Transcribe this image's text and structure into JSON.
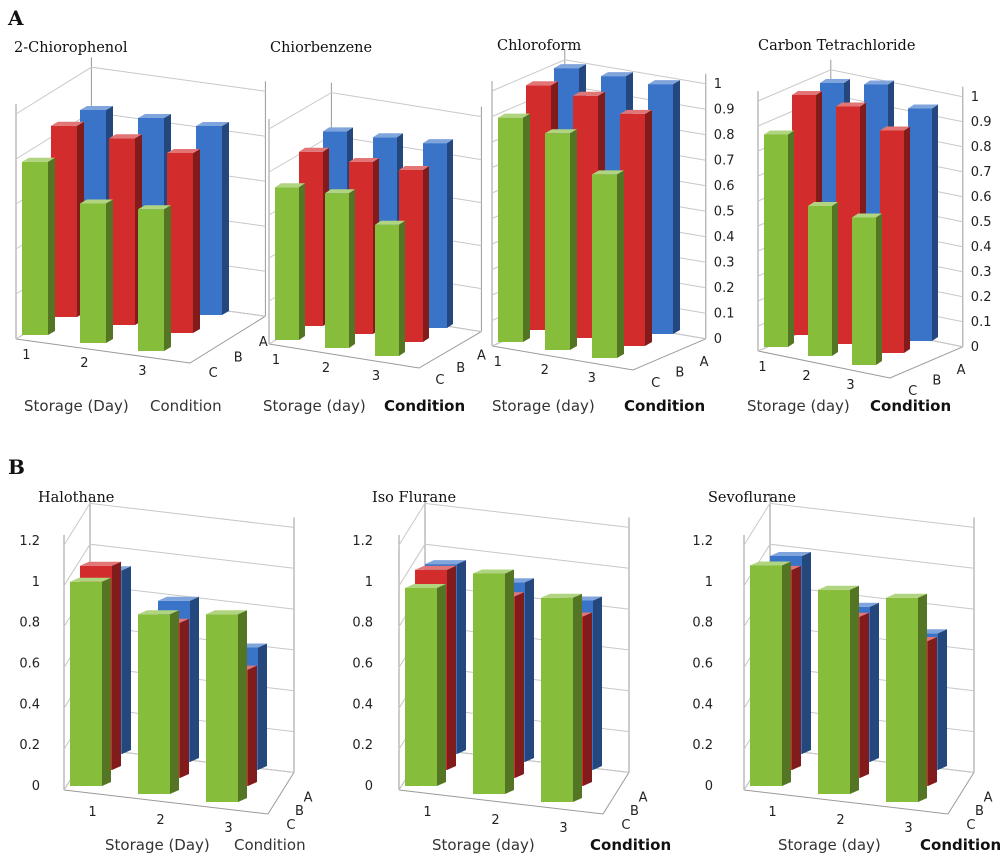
{
  "colors": {
    "A": "#3a74c9",
    "B": "#d22c2c",
    "C": "#86bd3a"
  },
  "panels": {
    "a": "A",
    "b": "B"
  },
  "chart_data": [
    {
      "panel": "A",
      "type": "bar3d",
      "title": "2-Chiorophenol",
      "xlabel": "Storage (Day)",
      "ylabel": "Condition",
      "storage_ticks": [
        "1",
        "2",
        "3"
      ],
      "condition_ticks": [
        "C",
        "B",
        "A"
      ],
      "y_ticks": [],
      "ylim": [
        0,
        1
      ],
      "series": [
        {
          "name": "A",
          "values": [
            0.84,
            0.84,
            0.84
          ]
        },
        {
          "name": "B",
          "values": [
            0.85,
            0.83,
            0.8
          ]
        },
        {
          "name": "C",
          "values": [
            0.77,
            0.62,
            0.63
          ]
        }
      ]
    },
    {
      "panel": "A",
      "type": "bar3d",
      "title": "Chiorbenzene",
      "xlabel": "Storage (day)",
      "ylabel": "Condition",
      "storage_ticks": [
        "1",
        "2",
        "3"
      ],
      "condition_ticks": [
        "C",
        "B",
        "A"
      ],
      "y_ticks": [],
      "ylim": [
        0,
        1
      ],
      "series": [
        {
          "name": "A",
          "values": [
            0.84,
            0.85,
            0.86
          ]
        },
        {
          "name": "B",
          "values": [
            0.81,
            0.8,
            0.8
          ]
        },
        {
          "name": "C",
          "values": [
            0.71,
            0.72,
            0.61
          ]
        }
      ]
    },
    {
      "panel": "A",
      "type": "bar3d",
      "title": "Chloroform",
      "xlabel": "Storage (day)",
      "ylabel": "Condition",
      "storage_ticks": [
        "1",
        "2",
        "3"
      ],
      "condition_ticks": [
        "C",
        "B",
        "A"
      ],
      "y_ticks": [
        "0",
        "0.1",
        "0.2",
        "0.3",
        "0.4",
        "0.5",
        "0.6",
        "0.7",
        "0.8",
        "0.9",
        "1"
      ],
      "ylim": [
        0,
        1
      ],
      "series": [
        {
          "name": "A",
          "values": [
            0.98,
            0.98,
            0.98
          ]
        },
        {
          "name": "B",
          "values": [
            0.96,
            0.95,
            0.91
          ]
        },
        {
          "name": "C",
          "values": [
            0.88,
            0.85,
            0.72
          ]
        }
      ]
    },
    {
      "panel": "A",
      "type": "bar3d",
      "title": "Carbon Tetrachloride",
      "xlabel": "Storage (day)",
      "ylabel": "Condition",
      "storage_ticks": [
        "1",
        "2",
        "3"
      ],
      "condition_ticks": [
        "C",
        "B",
        "A"
      ],
      "y_ticks": [
        "0",
        "0.1",
        "0.2",
        "0.3",
        "0.4",
        "0.5",
        "0.6",
        "0.7",
        "0.8",
        "0.9",
        "1"
      ],
      "ylim": [
        0,
        1
      ],
      "series": [
        {
          "name": "A",
          "values": [
            0.96,
            0.99,
            0.93
          ]
        },
        {
          "name": "B",
          "values": [
            0.96,
            0.95,
            0.89
          ]
        },
        {
          "name": "C",
          "values": [
            0.85,
            0.6,
            0.59
          ]
        }
      ]
    },
    {
      "panel": "B",
      "type": "bar3d",
      "title": "Halothane",
      "xlabel": "Storage (Day)",
      "ylabel": "Condition",
      "storage_ticks": [
        "1",
        "2",
        "3"
      ],
      "condition_ticks": [
        "C",
        "B",
        "A"
      ],
      "y_ticks": [
        "0",
        "0.2",
        "0.4",
        "0.6",
        "0.8",
        "1",
        "1.2"
      ],
      "ylim": [
        0,
        1.2
      ],
      "series": [
        {
          "name": "A",
          "values": [
            0.9,
            0.79,
            0.6
          ]
        },
        {
          "name": "B",
          "values": [
            1.0,
            0.76,
            0.57
          ]
        },
        {
          "name": "C",
          "values": [
            1.0,
            0.88,
            0.92
          ]
        }
      ]
    },
    {
      "panel": "B",
      "type": "bar3d",
      "title": "Iso Flurane",
      "xlabel": "Storage (day)",
      "ylabel": "Condition",
      "storage_ticks": [
        "1",
        "2",
        "3"
      ],
      "condition_ticks": [
        "C",
        "B",
        "A"
      ],
      "y_ticks": [
        "0",
        "0.2",
        "0.4",
        "0.6",
        "0.8",
        "1",
        "1.2"
      ],
      "ylim": [
        0,
        1.2
      ],
      "series": [
        {
          "name": "A",
          "values": [
            0.93,
            0.88,
            0.83
          ]
        },
        {
          "name": "B",
          "values": [
            0.98,
            0.89,
            0.83
          ]
        },
        {
          "name": "C",
          "values": [
            0.97,
            1.08,
            1.0
          ]
        }
      ]
    },
    {
      "panel": "B",
      "type": "bar3d",
      "title": "Sevoflurane",
      "xlabel": "Storage (day)",
      "ylabel": "Condition",
      "storage_ticks": [
        "1",
        "2",
        "3"
      ],
      "condition_ticks": [
        "C",
        "B",
        "A"
      ],
      "y_ticks": [
        "0",
        "0.2",
        "0.4",
        "0.6",
        "0.8",
        "1",
        "1.2"
      ],
      "ylim": [
        0,
        1.2
      ],
      "series": [
        {
          "name": "A",
          "values": [
            0.97,
            0.76,
            0.67
          ]
        },
        {
          "name": "B",
          "values": [
            0.98,
            0.79,
            0.71
          ]
        },
        {
          "name": "C",
          "values": [
            1.08,
            1.0,
            1.0
          ]
        }
      ]
    }
  ]
}
